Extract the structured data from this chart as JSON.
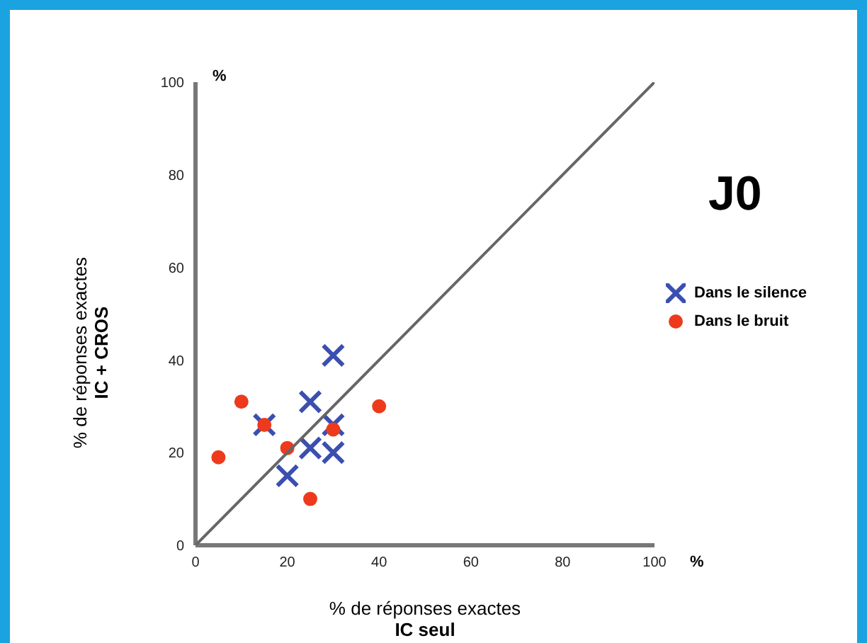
{
  "chart_data": {
    "type": "scatter",
    "title": "J0",
    "xlabel": "% de réponses exactes\nIC seul",
    "ylabel": "% de réponses exactes\nIC + CROS",
    "annotations": [
      "%",
      "%"
    ],
    "xlim": [
      0,
      100
    ],
    "xticks": [
      0,
      20,
      40,
      60,
      80,
      100
    ],
    "ylim": [
      0,
      100
    ],
    "yticks": [
      0,
      20,
      40,
      60,
      80,
      100
    ],
    "legend": "right",
    "series": [
      {
        "name": "Dans le silence",
        "color": "#3b4fb0",
        "marker": "cross",
        "x": [
          15,
          25,
          30,
          30,
          25,
          30,
          20
        ],
        "values": [
          26,
          31,
          41,
          26,
          21,
          20,
          15
        ]
      },
      {
        "name": "Dans le bruit",
        "color": "#ee3a1c",
        "marker": "circle",
        "x": [
          10,
          15,
          5,
          20,
          30,
          40,
          25
        ],
        "values": [
          31,
          26,
          19,
          21,
          25,
          30,
          10
        ]
      },
      {
        "type": "line",
        "color": "#666666",
        "marker": "none",
        "x": [
          0,
          100
        ],
        "values": [
          0,
          100
        ]
      }
    ]
  }
}
